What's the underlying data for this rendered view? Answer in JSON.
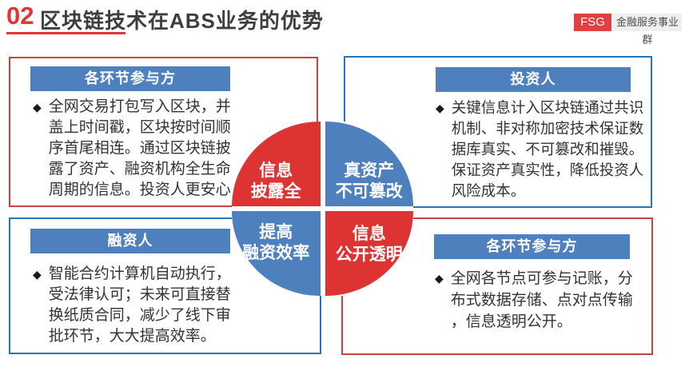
{
  "header": {
    "number": "02",
    "title": "区块链技术在ABS业务的优势",
    "badge": "FSG",
    "division": "金融服务事业群"
  },
  "bullet": "◆",
  "colors": {
    "accent_red": "#e23434",
    "diagram_red": "#dd3333",
    "diagram_blue": "#4d80bd",
    "border_red": "#c64444",
    "border_blue": "#2e74b5"
  },
  "panels": [
    {
      "position": "top-left",
      "border_color": "red",
      "header": "各环节参与方",
      "text": "全网交易打包写入区块，并盖上时间戳，区块按时间顺序首尾相连。通过区块链披露了资产、融资机构全生命周期的信息。投资人更安心"
    },
    {
      "position": "top-right",
      "border_color": "blue",
      "header": "投资人",
      "text": "关键信息计入区块链通过共识机制、非对称加密技术保证数据库真实、不可篡改和摧毁。保证资产真实性，降低投资人风险成本。"
    },
    {
      "position": "bottom-left",
      "border_color": "blue",
      "header": "融资人",
      "text": "智能合约计算机自动执行，受法律认可；未来可直接替换纸质合同，减少了线下审批环节，大大提高效率。"
    },
    {
      "position": "bottom-right",
      "border_color": "red",
      "header": "各环节参与方",
      "text": "全网各节点可参与记账，分布式数据存储、点对点传输，信息透明公开。"
    }
  ],
  "diagram": {
    "quadrants": [
      {
        "position": "top-left",
        "color": "red",
        "lines": [
          "信息",
          "披露全"
        ]
      },
      {
        "position": "top-right",
        "color": "blue",
        "lines": [
          "真资产",
          "不可篡改"
        ]
      },
      {
        "position": "bottom-left",
        "color": "blue",
        "lines": [
          "提高",
          "融资效率"
        ]
      },
      {
        "position": "bottom-right",
        "color": "red",
        "lines": [
          "信息",
          "公开透明"
        ]
      }
    ]
  }
}
